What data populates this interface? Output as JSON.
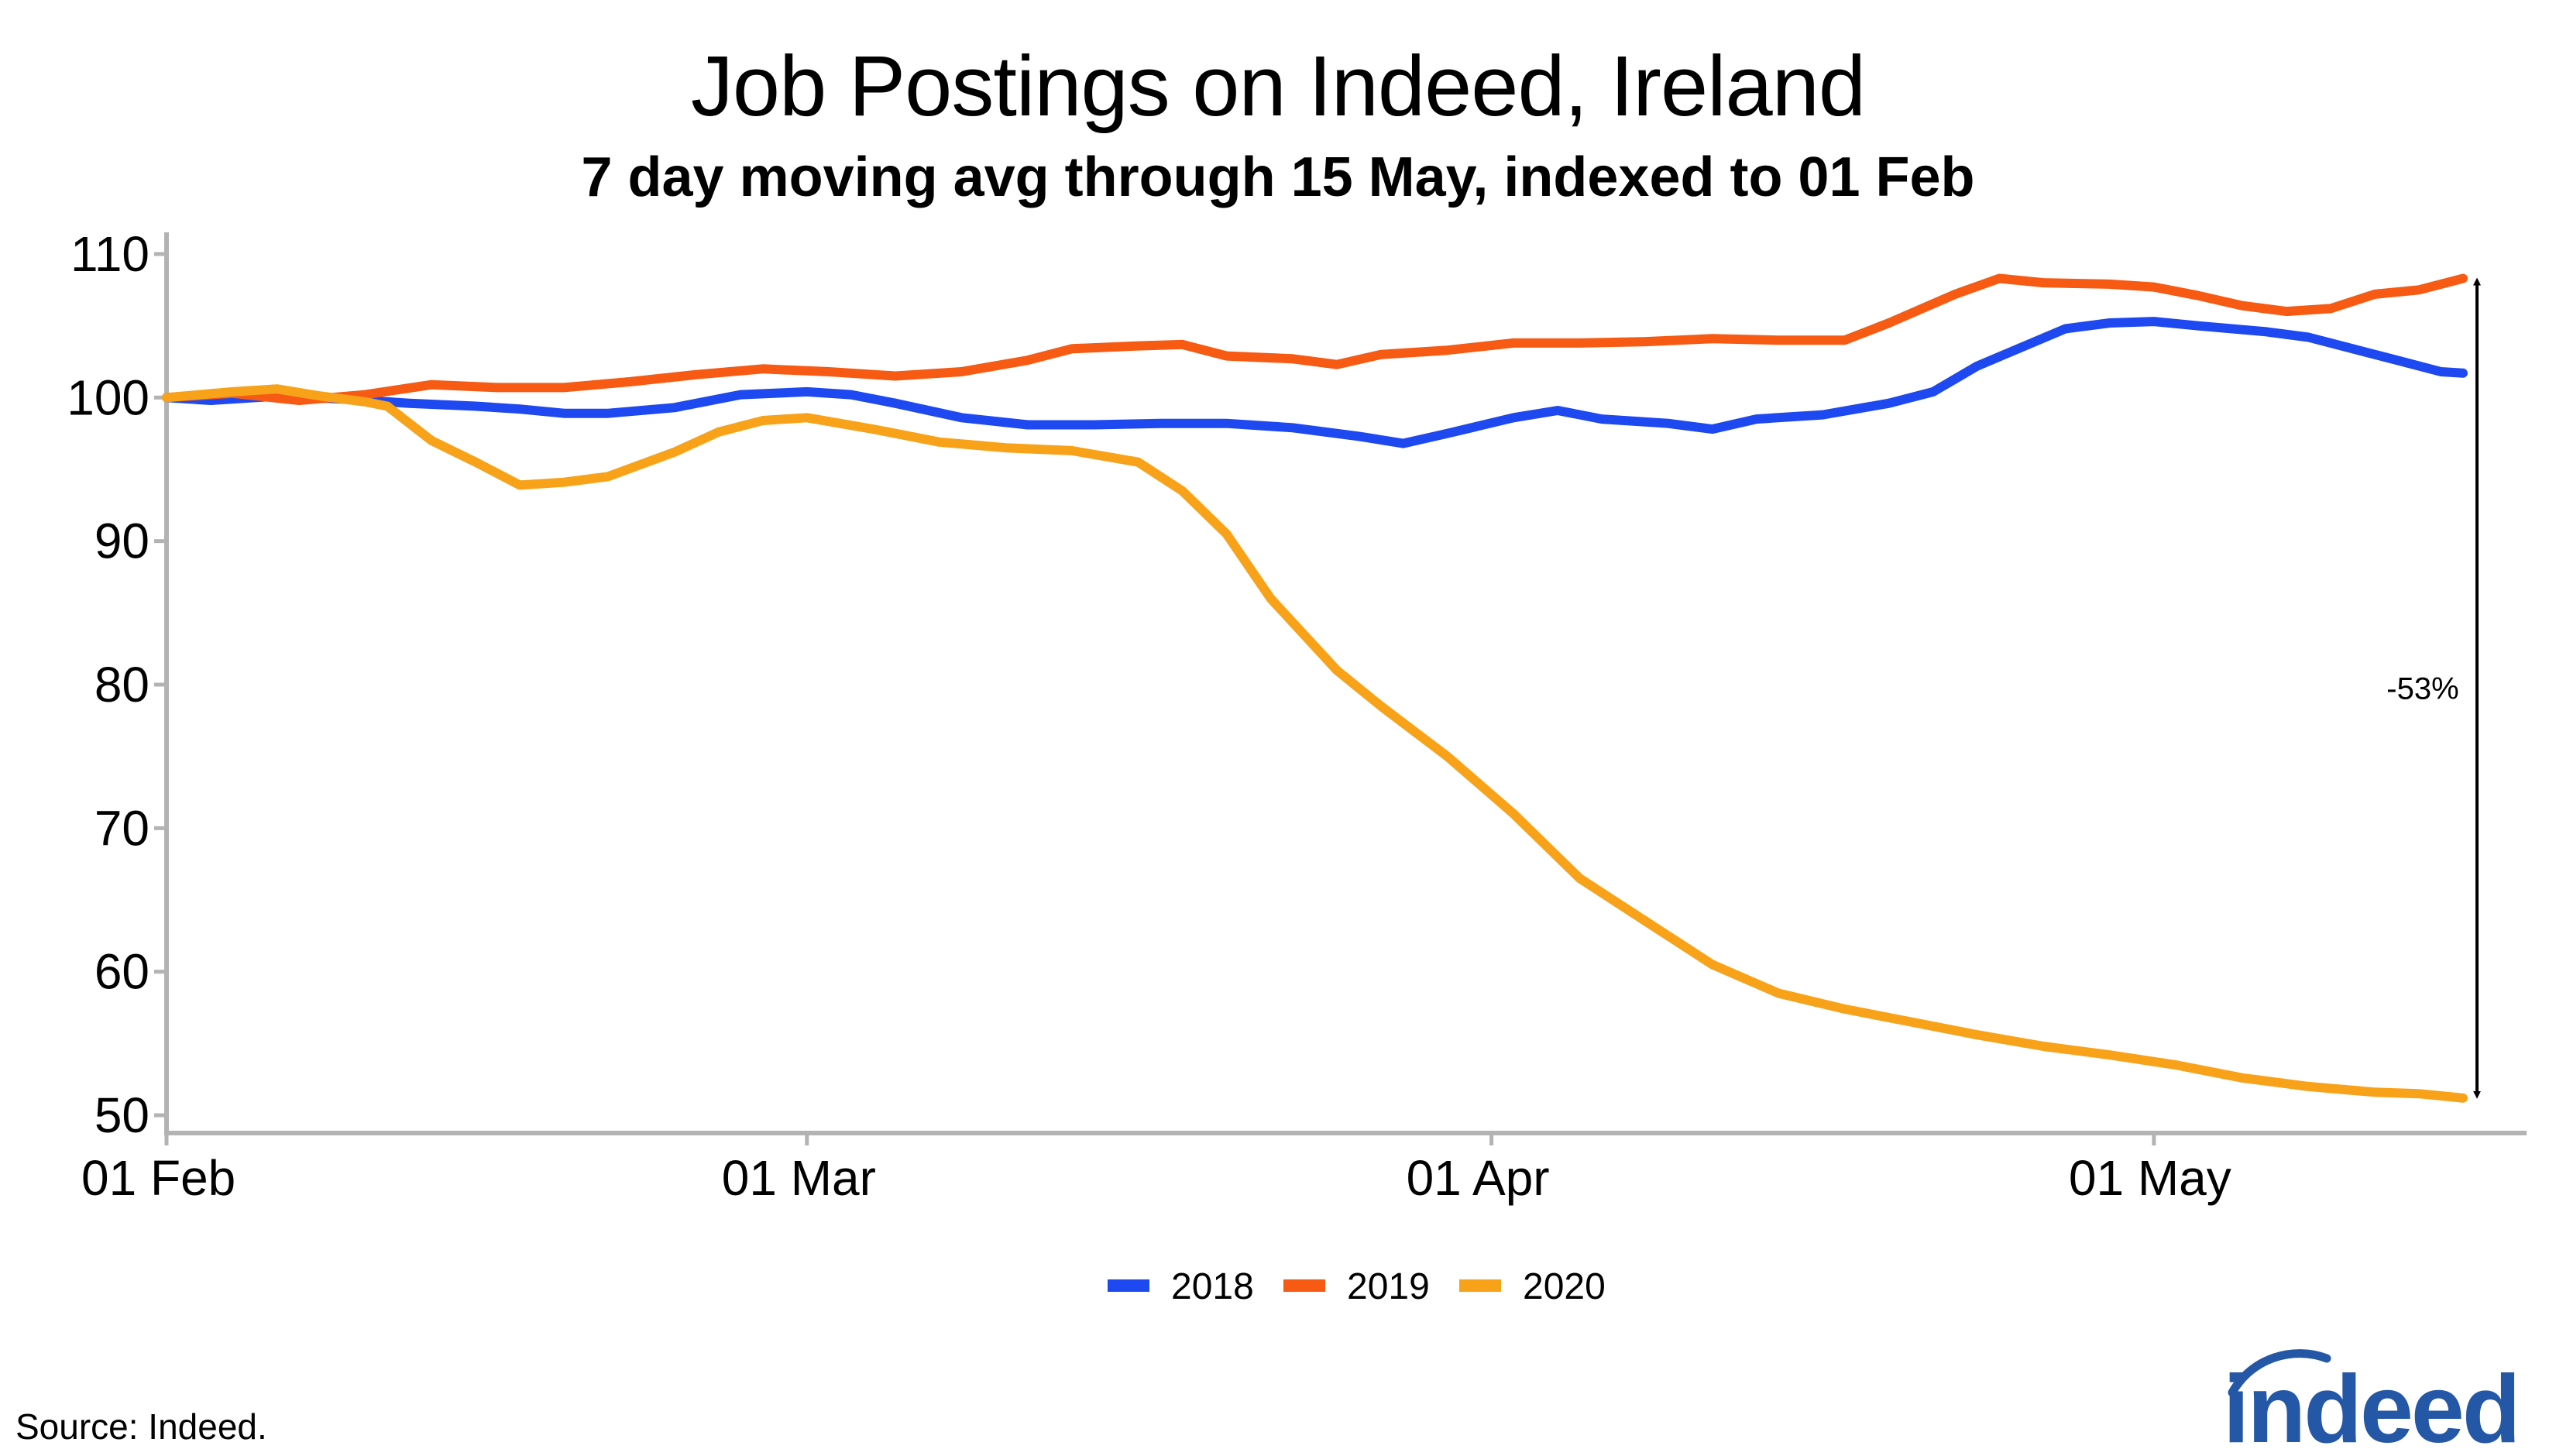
{
  "header": {
    "title": "Job Postings on Indeed, Ireland",
    "subtitle": "7 day moving avg through 15 May, indexed to 01 Feb"
  },
  "footer": {
    "source": "Source: Indeed.",
    "logo_text": "indeed"
  },
  "colors": {
    "2018": "#1f49f0",
    "2019": "#f65a13",
    "2020": "#f8a21a",
    "axis": "#b3b3b3",
    "logo": "#2557a7"
  },
  "chart_data": {
    "type": "line",
    "title": "Job Postings on Indeed, Ireland",
    "subtitle": "7 day moving avg through 15 May, indexed to 01 Feb",
    "xlabel": "",
    "ylabel": "",
    "ylim": [
      50,
      110
    ],
    "yticks": [
      50,
      60,
      70,
      80,
      90,
      100,
      110
    ],
    "xlim": [
      "2020-02-01",
      "2020-05-15"
    ],
    "xticks": [
      {
        "date": "2020-02-01",
        "label": "01 Feb"
      },
      {
        "date": "2020-03-01",
        "label": "01 Mar"
      },
      {
        "date": "2020-04-01",
        "label": "01 Apr"
      },
      {
        "date": "2020-05-01",
        "label": "01 May"
      }
    ],
    "grid": false,
    "legend_position": "bottom",
    "annotation": {
      "text": "-53%",
      "date": "2020-05-15",
      "from": 108.3,
      "to": 51.2
    },
    "series": [
      {
        "name": "2018",
        "points": [
          [
            "2020-02-01",
            100.0
          ],
          [
            "2020-02-03",
            99.8
          ],
          [
            "2020-02-06",
            100.1
          ],
          [
            "2020-02-09",
            99.9
          ],
          [
            "2020-02-12",
            99.6
          ],
          [
            "2020-02-15",
            99.4
          ],
          [
            "2020-02-17",
            99.2
          ],
          [
            "2020-02-19",
            98.9
          ],
          [
            "2020-02-21",
            98.9
          ],
          [
            "2020-02-24",
            99.3
          ],
          [
            "2020-02-27",
            100.2
          ],
          [
            "2020-03-01",
            100.4
          ],
          [
            "2020-03-03",
            100.2
          ],
          [
            "2020-03-05",
            99.6
          ],
          [
            "2020-03-08",
            98.6
          ],
          [
            "2020-03-11",
            98.1
          ],
          [
            "2020-03-14",
            98.1
          ],
          [
            "2020-03-17",
            98.2
          ],
          [
            "2020-03-20",
            98.2
          ],
          [
            "2020-03-23",
            97.9
          ],
          [
            "2020-03-26",
            97.3
          ],
          [
            "2020-03-28",
            96.8
          ],
          [
            "2020-03-30",
            97.5
          ],
          [
            "2020-04-02",
            98.6
          ],
          [
            "2020-04-04",
            99.1
          ],
          [
            "2020-04-06",
            98.5
          ],
          [
            "2020-04-09",
            98.2
          ],
          [
            "2020-04-11",
            97.8
          ],
          [
            "2020-04-13",
            98.5
          ],
          [
            "2020-04-16",
            98.8
          ],
          [
            "2020-04-19",
            99.6
          ],
          [
            "2020-04-21",
            100.4
          ],
          [
            "2020-04-23",
            102.2
          ],
          [
            "2020-04-25",
            103.5
          ],
          [
            "2020-04-27",
            104.8
          ],
          [
            "2020-04-29",
            105.2
          ],
          [
            "2020-05-01",
            105.3
          ],
          [
            "2020-05-03",
            105.0
          ],
          [
            "2020-05-06",
            104.6
          ],
          [
            "2020-05-08",
            104.2
          ],
          [
            "2020-05-10",
            103.4
          ],
          [
            "2020-05-12",
            102.6
          ],
          [
            "2020-05-14",
            101.8
          ],
          [
            "2020-05-15",
            101.7
          ]
        ]
      },
      {
        "name": "2019",
        "points": [
          [
            "2020-02-01",
            100.0
          ],
          [
            "2020-02-04",
            100.3
          ],
          [
            "2020-02-07",
            99.8
          ],
          [
            "2020-02-10",
            100.2
          ],
          [
            "2020-02-13",
            100.9
          ],
          [
            "2020-02-16",
            100.7
          ],
          [
            "2020-02-19",
            100.7
          ],
          [
            "2020-02-22",
            101.1
          ],
          [
            "2020-02-25",
            101.6
          ],
          [
            "2020-02-28",
            102.0
          ],
          [
            "2020-03-02",
            101.8
          ],
          [
            "2020-03-05",
            101.5
          ],
          [
            "2020-03-08",
            101.8
          ],
          [
            "2020-03-11",
            102.6
          ],
          [
            "2020-03-13",
            103.4
          ],
          [
            "2020-03-16",
            103.6
          ],
          [
            "2020-03-18",
            103.7
          ],
          [
            "2020-03-20",
            102.9
          ],
          [
            "2020-03-23",
            102.7
          ],
          [
            "2020-03-25",
            102.3
          ],
          [
            "2020-03-27",
            103.0
          ],
          [
            "2020-03-30",
            103.3
          ],
          [
            "2020-04-02",
            103.8
          ],
          [
            "2020-04-05",
            103.8
          ],
          [
            "2020-04-08",
            103.9
          ],
          [
            "2020-04-11",
            104.1
          ],
          [
            "2020-04-14",
            104.0
          ],
          [
            "2020-04-17",
            104.0
          ],
          [
            "2020-04-19",
            105.2
          ],
          [
            "2020-04-22",
            107.2
          ],
          [
            "2020-04-24",
            108.3
          ],
          [
            "2020-04-26",
            108.0
          ],
          [
            "2020-04-29",
            107.9
          ],
          [
            "2020-05-01",
            107.7
          ],
          [
            "2020-05-03",
            107.1
          ],
          [
            "2020-05-05",
            106.4
          ],
          [
            "2020-05-07",
            106.0
          ],
          [
            "2020-05-09",
            106.2
          ],
          [
            "2020-05-11",
            107.2
          ],
          [
            "2020-05-13",
            107.5
          ],
          [
            "2020-05-15",
            108.3
          ]
        ]
      },
      {
        "name": "2020",
        "points": [
          [
            "2020-02-01",
            100.0
          ],
          [
            "2020-02-04",
            100.4
          ],
          [
            "2020-02-06",
            100.6
          ],
          [
            "2020-02-08",
            100.1
          ],
          [
            "2020-02-10",
            99.7
          ],
          [
            "2020-02-11",
            99.4
          ],
          [
            "2020-02-13",
            97.0
          ],
          [
            "2020-02-15",
            95.5
          ],
          [
            "2020-02-17",
            93.9
          ],
          [
            "2020-02-19",
            94.1
          ],
          [
            "2020-02-21",
            94.5
          ],
          [
            "2020-02-24",
            96.2
          ],
          [
            "2020-02-26",
            97.6
          ],
          [
            "2020-02-28",
            98.4
          ],
          [
            "2020-03-01",
            98.6
          ],
          [
            "2020-03-04",
            97.8
          ],
          [
            "2020-03-07",
            96.9
          ],
          [
            "2020-03-10",
            96.5
          ],
          [
            "2020-03-13",
            96.3
          ],
          [
            "2020-03-16",
            95.5
          ],
          [
            "2020-03-18",
            93.5
          ],
          [
            "2020-03-20",
            90.5
          ],
          [
            "2020-03-22",
            86.0
          ],
          [
            "2020-03-25",
            81.0
          ],
          [
            "2020-03-27",
            78.5
          ],
          [
            "2020-03-30",
            75.0
          ],
          [
            "2020-04-02",
            71.0
          ],
          [
            "2020-04-05",
            66.5
          ],
          [
            "2020-04-08",
            63.5
          ],
          [
            "2020-04-11",
            60.5
          ],
          [
            "2020-04-14",
            58.5
          ],
          [
            "2020-04-17",
            57.4
          ],
          [
            "2020-04-20",
            56.5
          ],
          [
            "2020-04-23",
            55.6
          ],
          [
            "2020-04-26",
            54.8
          ],
          [
            "2020-04-29",
            54.2
          ],
          [
            "2020-05-02",
            53.5
          ],
          [
            "2020-05-05",
            52.6
          ],
          [
            "2020-05-08",
            52.0
          ],
          [
            "2020-05-11",
            51.6
          ],
          [
            "2020-05-13",
            51.5
          ],
          [
            "2020-05-15",
            51.2
          ]
        ]
      }
    ]
  }
}
